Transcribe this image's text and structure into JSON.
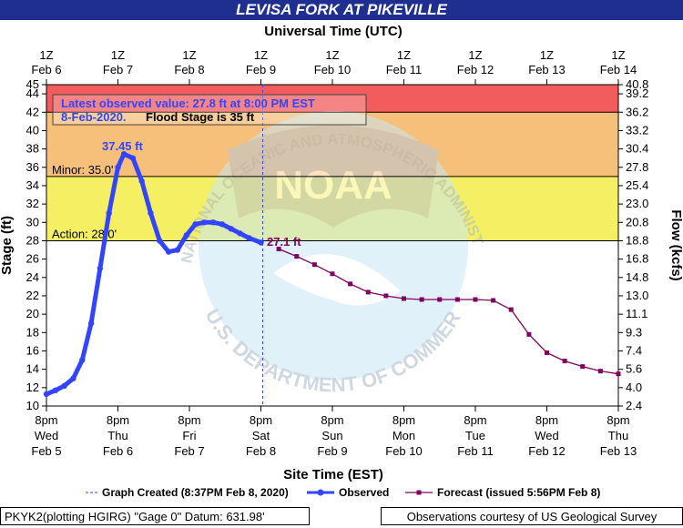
{
  "title": "LEVISA FORK AT PIKEVILLE",
  "top_axis_title": "Universal Time (UTC)",
  "top_ticks": [
    {
      "l1": "1Z",
      "l2": "Feb  6"
    },
    {
      "l1": "1Z",
      "l2": "Feb  7"
    },
    {
      "l1": "1Z",
      "l2": "Feb  8"
    },
    {
      "l1": "1Z",
      "l2": "Feb  9"
    },
    {
      "l1": "1Z",
      "l2": "Feb 10"
    },
    {
      "l1": "1Z",
      "l2": "Feb 11"
    },
    {
      "l1": "1Z",
      "l2": "Feb 12"
    },
    {
      "l1": "1Z",
      "l2": "Feb 13"
    },
    {
      "l1": "1Z",
      "l2": "Feb 14"
    }
  ],
  "bottom_axis_title": "Site Time (EST)",
  "bottom_ticks": [
    {
      "l1": "8pm",
      "l2": "Wed",
      "l3": "Feb 5"
    },
    {
      "l1": "8pm",
      "l2": "Thu",
      "l3": "Feb 6"
    },
    {
      "l1": "8pm",
      "l2": "Fri",
      "l3": "Feb 7"
    },
    {
      "l1": "8pm",
      "l2": "Sat",
      "l3": "Feb 8"
    },
    {
      "l1": "8pm",
      "l2": "Sun",
      "l3": "Feb 9"
    },
    {
      "l1": "8pm",
      "l2": "Mon",
      "l3": "Feb 10"
    },
    {
      "l1": "8pm",
      "l2": "Tue",
      "l3": "Feb 11"
    },
    {
      "l1": "8pm",
      "l2": "Wed",
      "l3": "Feb 12"
    },
    {
      "l1": "8pm",
      "l2": "Thu",
      "l3": "Feb 13"
    }
  ],
  "left_axis_title": "Stage (ft)",
  "right_axis_title": "Flow (kcfs)",
  "left_ticks": [
    "10",
    "12",
    "14",
    "16",
    "18",
    "20",
    "22",
    "24",
    "26",
    "28",
    "30",
    "32",
    "34",
    "36",
    "38",
    "40",
    "42",
    "44",
    "45"
  ],
  "right_ticks": [
    {
      "stage": 10,
      "label": "2.4"
    },
    {
      "stage": 12,
      "label": "4.0"
    },
    {
      "stage": 14,
      "label": "5.6"
    },
    {
      "stage": 16,
      "label": "7.4"
    },
    {
      "stage": 18,
      "label": "9.3"
    },
    {
      "stage": 20,
      "label": "11.1"
    },
    {
      "stage": 22,
      "label": "13.0"
    },
    {
      "stage": 24,
      "label": "14.8"
    },
    {
      "stage": 26,
      "label": "16.8"
    },
    {
      "stage": 28,
      "label": "18.8"
    },
    {
      "stage": 30,
      "label": "20.8"
    },
    {
      "stage": 32,
      "label": "23.0"
    },
    {
      "stage": 34,
      "label": "25.4"
    },
    {
      "stage": 36,
      "label": "27.8"
    },
    {
      "stage": 38,
      "label": "30.4"
    },
    {
      "stage": 40,
      "label": "33.2"
    },
    {
      "stage": 42,
      "label": "36.2"
    },
    {
      "stage": 44,
      "label": "39.2"
    },
    {
      "stage": 45,
      "label": "40.8"
    }
  ],
  "latest_text_line1": "Latest observed value: 27.8 ft at 8:00 PM EST",
  "latest_text_line2a": "8-Feb-2020.",
  "latest_text_line2b": "Flood Stage is 35 ft",
  "minor_label": "Minor: 35.0'",
  "action_label": "Action: 28.0'",
  "peak_label": "37.45 ft",
  "forecast_start_label": "27.1 ft",
  "watermark_top": "NATIONAL OCEANIC AND ATMOSPHERIC ADMINISTRATION",
  "watermark_bottom": "U.S. DEPARTMENT OF COMMERCE",
  "watermark_center": "NOAA",
  "legend": {
    "created": "Graph Created (8:37PM Feb 8, 2020)",
    "observed": "Observed",
    "forecast": "Forecast (issued 5:56PM Feb 8)"
  },
  "footer_left": "PKYK2(plotting HGIRG) \"Gage 0\" Datum: 631.98'",
  "footer_right": "Observations courtesy of US Geological Survey",
  "colors": {
    "observed": "#3344ff",
    "forecast": "#800060",
    "title_bg": "#1f2f8f",
    "major_band": "#f25c5c",
    "moderate_band": "#f7c07a",
    "minor_band": "#f5f063",
    "action_band": "#f6f7a8",
    "normal_band": "#ffffff"
  },
  "chart_data": {
    "type": "line",
    "title": "LEVISA FORK AT PIKEVILLE",
    "xlabel": "Site Time (EST)",
    "ylabel": "Stage (ft)",
    "y2label": "Flow (kcfs)",
    "xlim": [
      "2020-02-05 20:00",
      "2020-02-13 20:00"
    ],
    "ylim": [
      10,
      45
    ],
    "thresholds": [
      {
        "name": "Minor",
        "stage": 35.0
      },
      {
        "name": "Action",
        "stage": 28.0
      },
      {
        "name": "Flood Stage",
        "stage": 35
      }
    ],
    "graph_created": "2020-02-08 20:37",
    "series": [
      {
        "name": "Observed",
        "x": [
          "2020-02-05 20:00",
          "2020-02-05 23:00",
          "2020-02-06 02:00",
          "2020-02-06 05:00",
          "2020-02-06 08:00",
          "2020-02-06 11:00",
          "2020-02-06 14:00",
          "2020-02-06 17:00",
          "2020-02-06 20:00",
          "2020-02-06 22:00",
          "2020-02-07 01:00",
          "2020-02-07 04:00",
          "2020-02-07 07:00",
          "2020-02-07 10:00",
          "2020-02-07 13:00",
          "2020-02-07 16:00",
          "2020-02-07 19:00",
          "2020-02-07 22:00",
          "2020-02-08 01:00",
          "2020-02-08 04:00",
          "2020-02-08 07:00",
          "2020-02-08 10:00",
          "2020-02-08 13:00",
          "2020-02-08 16:00",
          "2020-02-08 20:00"
        ],
        "y": [
          11.3,
          11.7,
          12.2,
          13.0,
          15.0,
          19.0,
          25.0,
          31.0,
          36.0,
          37.45,
          37.0,
          34.5,
          31.0,
          28.0,
          26.8,
          27.0,
          28.6,
          29.8,
          30.0,
          30.0,
          29.8,
          29.3,
          28.8,
          28.3,
          27.8
        ]
      },
      {
        "name": "Forecast (issued 5:56PM Feb 8)",
        "x": [
          "2020-02-09 02:00",
          "2020-02-09 08:00",
          "2020-02-09 14:00",
          "2020-02-09 20:00",
          "2020-02-10 02:00",
          "2020-02-10 08:00",
          "2020-02-10 14:00",
          "2020-02-10 20:00",
          "2020-02-11 02:00",
          "2020-02-11 08:00",
          "2020-02-11 14:00",
          "2020-02-11 20:00",
          "2020-02-12 02:00",
          "2020-02-12 08:00",
          "2020-02-12 14:00",
          "2020-02-12 20:00",
          "2020-02-13 02:00",
          "2020-02-13 08:00",
          "2020-02-13 14:00",
          "2020-02-13 20:00"
        ],
        "y": [
          27.1,
          26.3,
          25.4,
          24.4,
          23.3,
          22.4,
          22.0,
          21.7,
          21.6,
          21.6,
          21.6,
          21.6,
          21.5,
          20.5,
          17.8,
          15.8,
          14.9,
          14.3,
          13.8,
          13.5
        ]
      }
    ]
  }
}
